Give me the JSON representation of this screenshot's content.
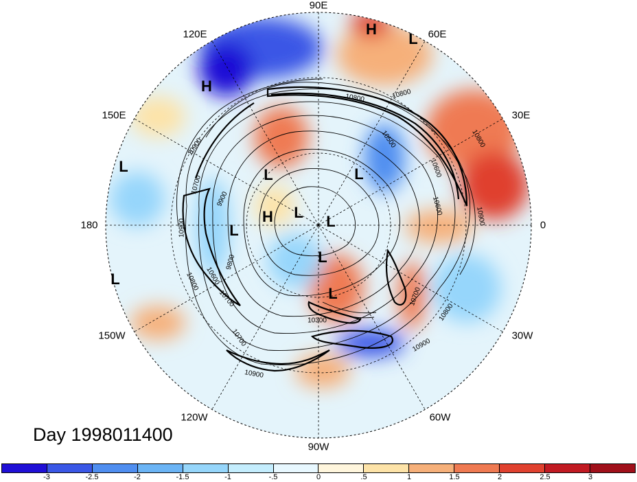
{
  "date_label": "Day 1998011400",
  "longitude_labels": [
    "90E",
    "60E",
    "30E",
    "0",
    "30W",
    "60W",
    "90W",
    "120W",
    "150W",
    "180",
    "150E",
    "120E"
  ],
  "pressure_systems": [
    "H",
    "L",
    "H",
    "L",
    "L",
    "L",
    "H",
    "L",
    "L",
    "L",
    "L",
    "L",
    "L"
  ],
  "contour_labels": [
    "10800",
    "10800",
    "10900",
    "10700",
    "10600",
    "10600",
    "10500",
    "10900",
    "10800",
    "10700",
    "10800",
    "10900",
    "10700",
    "10900",
    "10300",
    "10900",
    "10700",
    "10600",
    "9900",
    "9800",
    "10800"
  ],
  "colorbar": {
    "ticks": [
      "-3",
      "-2.5",
      "-2",
      "-1.5",
      "-1",
      "-.5",
      "0",
      ".5",
      "1",
      "1.5",
      "2",
      "2.5",
      "3"
    ],
    "colors": [
      "#1f0fd6",
      "#3a57e6",
      "#4f8ef0",
      "#6bb4f5",
      "#96d6fb",
      "#c4edfd",
      "#e8f8ff",
      "#fff6dd",
      "#fde3a8",
      "#f6b07a",
      "#ef7a52",
      "#e0412f",
      "#c11a22",
      "#a0101a"
    ]
  }
}
